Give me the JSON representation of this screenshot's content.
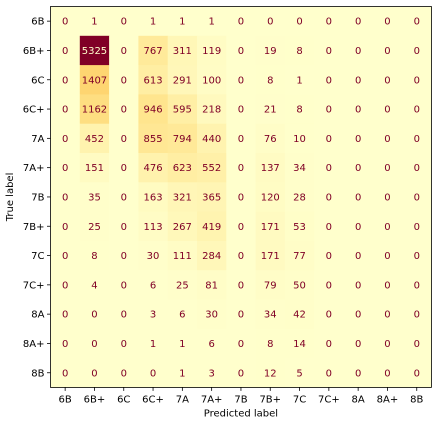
{
  "chart_data": {
    "type": "heatmap",
    "title": "",
    "xlabel": "Predicted label",
    "ylabel": "True label",
    "x_categories": [
      "6B",
      "6B+",
      "6C",
      "6C+",
      "7A",
      "7A+",
      "7B",
      "7B+",
      "7C",
      "7C+",
      "8A",
      "8A+",
      "8B"
    ],
    "y_categories": [
      "6B",
      "6B+",
      "6C",
      "6C+",
      "7A",
      "7A+",
      "7B",
      "7B+",
      "7C",
      "7C+",
      "8A",
      "8A+",
      "8B"
    ],
    "values": [
      [
        0,
        1,
        0,
        1,
        1,
        1,
        0,
        0,
        0,
        0,
        0,
        0,
        0
      ],
      [
        0,
        5325,
        0,
        767,
        311,
        119,
        0,
        19,
        8,
        0,
        0,
        0,
        0
      ],
      [
        0,
        1407,
        0,
        613,
        291,
        100,
        0,
        8,
        1,
        0,
        0,
        0,
        0
      ],
      [
        0,
        1162,
        0,
        946,
        595,
        218,
        0,
        21,
        8,
        0,
        0,
        0,
        0
      ],
      [
        0,
        452,
        0,
        855,
        794,
        440,
        0,
        76,
        10,
        0,
        0,
        0,
        0
      ],
      [
        0,
        151,
        0,
        476,
        623,
        552,
        0,
        137,
        34,
        0,
        0,
        0,
        0
      ],
      [
        0,
        35,
        0,
        163,
        321,
        365,
        0,
        120,
        28,
        0,
        0,
        0,
        0
      ],
      [
        0,
        25,
        0,
        113,
        267,
        419,
        0,
        171,
        53,
        0,
        0,
        0,
        0
      ],
      [
        0,
        8,
        0,
        30,
        111,
        284,
        0,
        171,
        77,
        0,
        0,
        0,
        0
      ],
      [
        0,
        4,
        0,
        6,
        25,
        81,
        0,
        79,
        50,
        0,
        0,
        0,
        0
      ],
      [
        0,
        0,
        0,
        3,
        6,
        30,
        0,
        34,
        42,
        0,
        0,
        0,
        0
      ],
      [
        0,
        0,
        0,
        1,
        1,
        6,
        0,
        8,
        14,
        0,
        0,
        0,
        0
      ],
      [
        0,
        0,
        0,
        0,
        1,
        3,
        0,
        12,
        5,
        0,
        0,
        0,
        0
      ]
    ],
    "colormap": "YlOrRd",
    "color_low": "#ffffcc",
    "color_high": "#800026",
    "text_color_light_cells": "#800026",
    "text_color_dark_cells": "#ffffcc",
    "grid": false,
    "legend": "none"
  }
}
